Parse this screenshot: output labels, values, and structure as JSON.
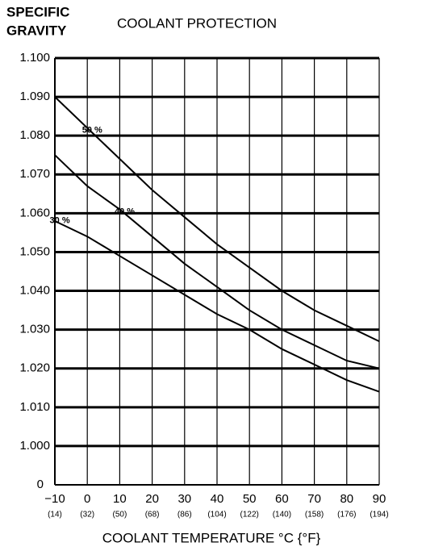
{
  "chart_data": {
    "type": "line",
    "title": "COOLANT PROTECTION",
    "ylabel_lines": [
      "SPECIFIC",
      "GRAVITY"
    ],
    "xlabel": "COOLANT TEMPERATURE °C {°F}",
    "x": [
      -10,
      0,
      10,
      20,
      30,
      40,
      50,
      60,
      70,
      80,
      90
    ],
    "x2_tick_labels": [
      "(14)",
      "(32)",
      "(50)",
      "(68)",
      "(86)",
      "(104)",
      "(122)",
      "(140)",
      "(158)",
      "(176)",
      "(194)"
    ],
    "xlim": [
      -10,
      90
    ],
    "xticks": [
      {
        "value": -10,
        "label": "−10"
      },
      0,
      10,
      20,
      30,
      40,
      50,
      60,
      70,
      80,
      90
    ],
    "ylim": [
      0.99,
      1.1
    ],
    "yticks": [
      {
        "value": 1.1,
        "label": "1.100"
      },
      {
        "value": 1.09,
        "label": "1.090"
      },
      {
        "value": 1.08,
        "label": "1.080"
      },
      {
        "value": 1.07,
        "label": "1.070"
      },
      {
        "value": 1.06,
        "label": "1.060"
      },
      {
        "value": 1.05,
        "label": "1.050"
      },
      {
        "value": 1.04,
        "label": "1.040"
      },
      {
        "value": 1.03,
        "label": "1.030"
      },
      {
        "value": 1.02,
        "label": "1.020"
      },
      {
        "value": 1.01,
        "label": "1.010"
      },
      {
        "value": 1.0,
        "label": "1.000"
      }
    ],
    "y_break_label": "0",
    "grid": true,
    "series": [
      {
        "name": "50 %",
        "color": "#000000",
        "values": [
          1.09,
          1.082,
          1.074,
          1.066,
          1.059,
          1.052,
          1.046,
          1.04,
          1.035,
          1.031,
          1.027
        ]
      },
      {
        "name": "40 %",
        "color": "#000000",
        "values": [
          1.075,
          1.067,
          1.061,
          1.054,
          1.047,
          1.041,
          1.035,
          1.03,
          1.026,
          1.022,
          1.02
        ]
      },
      {
        "name": "30 %",
        "color": "#000000",
        "values": [
          1.058,
          1.054,
          1.049,
          1.044,
          1.039,
          1.034,
          1.03,
          1.025,
          1.021,
          1.017,
          1.014
        ]
      }
    ]
  }
}
